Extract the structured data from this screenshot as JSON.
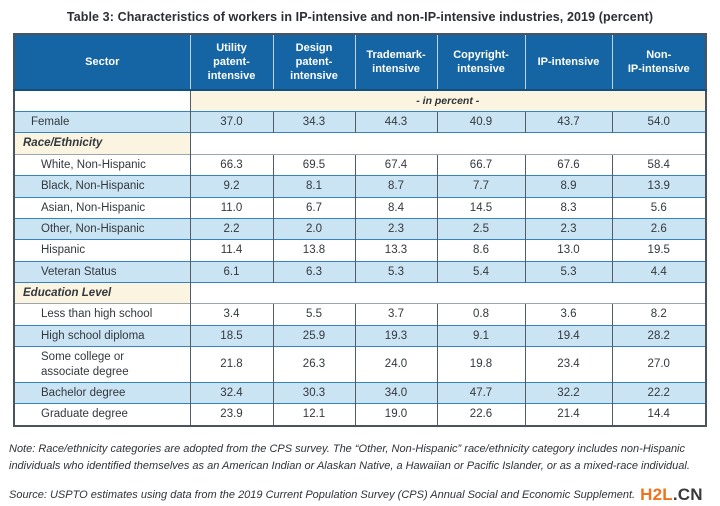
{
  "title": "Table 3: Characteristics of workers in IP-intensive and non-IP-intensive industries, 2019 (percent)",
  "table": {
    "columns": [
      "Sector",
      "Utility\npatent-\nintensive",
      "Design\npatent-\nintensive",
      "Trademark-\nintensive",
      "Copyright-\nintensive",
      "IP-intensive",
      "Non-\nIP-intensive"
    ],
    "unit_label": "- in percent -",
    "rows": [
      {
        "label": "Female",
        "type": "data",
        "shade": "blue",
        "indent": 1,
        "values": [
          "37.0",
          "34.3",
          "44.3",
          "40.9",
          "43.7",
          "54.0"
        ]
      },
      {
        "label": "Race/Ethnicity",
        "type": "section",
        "shade": "section",
        "indent": 0,
        "values": []
      },
      {
        "label": "White, Non-Hispanic",
        "type": "data",
        "shade": "white",
        "indent": 2,
        "values": [
          "66.3",
          "69.5",
          "67.4",
          "66.7",
          "67.6",
          "58.4"
        ]
      },
      {
        "label": "Black, Non-Hispanic",
        "type": "data",
        "shade": "blue",
        "indent": 2,
        "values": [
          "9.2",
          "8.1",
          "8.7",
          "7.7",
          "8.9",
          "13.9"
        ]
      },
      {
        "label": "Asian, Non-Hispanic",
        "type": "data",
        "shade": "white",
        "indent": 2,
        "values": [
          "11.0",
          "6.7",
          "8.4",
          "14.5",
          "8.3",
          "5.6"
        ]
      },
      {
        "label": "Other, Non-Hispanic",
        "type": "data",
        "shade": "blue",
        "indent": 2,
        "values": [
          "2.2",
          "2.0",
          "2.3",
          "2.5",
          "2.3",
          "2.6"
        ]
      },
      {
        "label": "Hispanic",
        "type": "data",
        "shade": "white",
        "indent": 2,
        "values": [
          "11.4",
          "13.8",
          "13.3",
          "8.6",
          "13.0",
          "19.5"
        ]
      },
      {
        "label": "Veteran Status",
        "type": "data",
        "shade": "blue",
        "indent": 2,
        "values": [
          "6.1",
          "6.3",
          "5.3",
          "5.4",
          "5.3",
          "4.4"
        ]
      },
      {
        "label": "Education Level",
        "type": "section",
        "shade": "section",
        "indent": 0,
        "values": []
      },
      {
        "label": "Less than high school",
        "type": "data",
        "shade": "white",
        "indent": 2,
        "values": [
          "3.4",
          "5.5",
          "3.7",
          "0.8",
          "3.6",
          "8.2"
        ]
      },
      {
        "label": "High school diploma",
        "type": "data",
        "shade": "blue",
        "indent": 2,
        "values": [
          "18.5",
          "25.9",
          "19.3",
          "9.1",
          "19.4",
          "28.2"
        ]
      },
      {
        "label": "Some college or\nassociate degree",
        "type": "data",
        "shade": "white",
        "indent": 2,
        "values": [
          "21.8",
          "26.3",
          "24.0",
          "19.8",
          "23.4",
          "27.0"
        ]
      },
      {
        "label": "Bachelor degree",
        "type": "data",
        "shade": "blue",
        "indent": 2,
        "values": [
          "32.4",
          "30.3",
          "34.0",
          "47.7",
          "32.2",
          "22.2"
        ]
      },
      {
        "label": "Graduate degree",
        "type": "data",
        "shade": "white",
        "indent": 2,
        "values": [
          "23.9",
          "12.1",
          "19.0",
          "22.6",
          "21.4",
          "14.4"
        ]
      }
    ]
  },
  "notes": {
    "note": "Note: Race/ethnicity categories are adopted from the CPS survey. The “Other, Non-Hispanic” race/ethnicity category includes non-Hispanic individuals who identified themselves as an American Indian or Alaskan Native, a Hawaiian or Pacific Islander, or as a mixed-race individual.",
    "source": "Source: USPTO estimates using data from the 2019 Current Population Survey (CPS) Annual Social and Economic Supplement."
  },
  "watermark": {
    "primary": "H2L",
    "secondary": ".CN",
    "primary_color": "#F0731C",
    "secondary_color": "#3A3A3A"
  },
  "colors": {
    "header_bg": "#1565A4",
    "row_blue": "#CBE4F3",
    "row_cream": "#FBF4E1",
    "border_dark": "#4A545E",
    "border_gray": "#9AA5AD",
    "border_blue": "#3384C6",
    "text": "#33383D"
  }
}
